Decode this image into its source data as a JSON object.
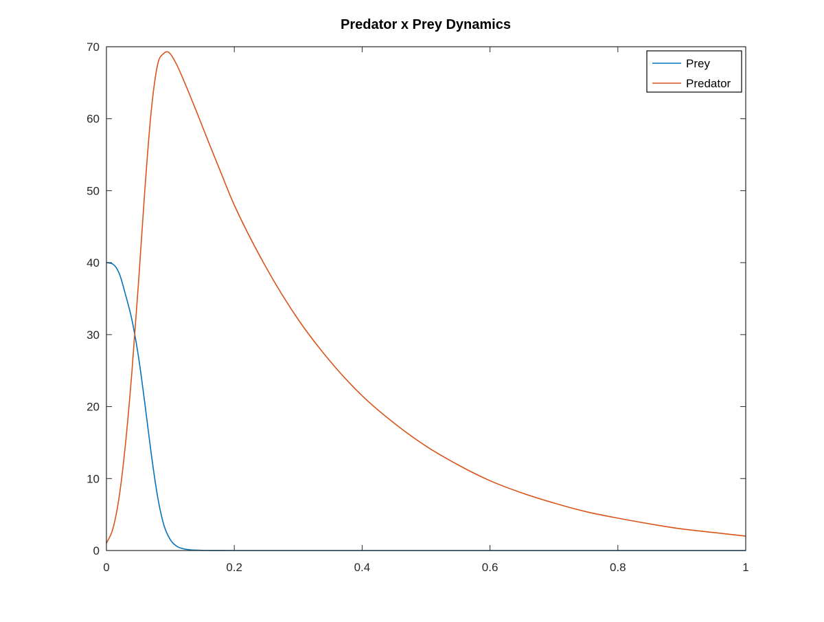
{
  "chart_data": {
    "type": "line",
    "title": "Predator x Prey Dynamics",
    "xlabel": "",
    "ylabel": "",
    "xlim": [
      0,
      1
    ],
    "ylim": [
      0,
      70
    ],
    "x_ticks": [
      0,
      0.2,
      0.4,
      0.6,
      0.8,
      1
    ],
    "x_tick_labels": [
      "0",
      "0.2",
      "0.4",
      "0.6",
      "0.8",
      "1"
    ],
    "y_ticks": [
      0,
      10,
      20,
      30,
      40,
      50,
      60,
      70
    ],
    "y_tick_labels": [
      "0",
      "10",
      "20",
      "30",
      "40",
      "50",
      "60",
      "70"
    ],
    "grid": false,
    "legend_position": "top-right",
    "series": [
      {
        "name": "Prey",
        "color": "#0072bd",
        "x": [
          0,
          0.01,
          0.02,
          0.03,
          0.04,
          0.05,
          0.06,
          0.07,
          0.08,
          0.09,
          0.1,
          0.11,
          0.12,
          0.13,
          0.14,
          0.15,
          0.16,
          0.2,
          0.3,
          0.4,
          0.5,
          0.6,
          0.7,
          0.8,
          0.9,
          1.0
        ],
        "y": [
          40,
          39.8,
          38.5,
          35.5,
          32,
          27,
          20.5,
          13.5,
          7.5,
          3.5,
          1.5,
          0.6,
          0.25,
          0.1,
          0.05,
          0.02,
          0.01,
          0,
          0,
          0,
          0,
          0,
          0,
          0,
          0,
          0
        ]
      },
      {
        "name": "Predator",
        "color": "#d95319",
        "x": [
          0,
          0.01,
          0.02,
          0.03,
          0.04,
          0.05,
          0.06,
          0.07,
          0.08,
          0.09,
          0.095,
          0.1,
          0.11,
          0.12,
          0.14,
          0.16,
          0.18,
          0.2,
          0.25,
          0.3,
          0.35,
          0.4,
          0.45,
          0.5,
          0.55,
          0.6,
          0.65,
          0.7,
          0.75,
          0.8,
          0.85,
          0.9,
          0.95,
          1.0
        ],
        "y": [
          1,
          3,
          7.5,
          15,
          25,
          37,
          50,
          61,
          67.5,
          69.1,
          69.3,
          69,
          67.5,
          65.5,
          61.2,
          56.7,
          52.3,
          48,
          39.3,
          32.1,
          26.3,
          21.5,
          17.7,
          14.5,
          11.9,
          9.7,
          8.0,
          6.6,
          5.4,
          4.5,
          3.7,
          3.0,
          2.5,
          2.0
        ]
      }
    ]
  }
}
